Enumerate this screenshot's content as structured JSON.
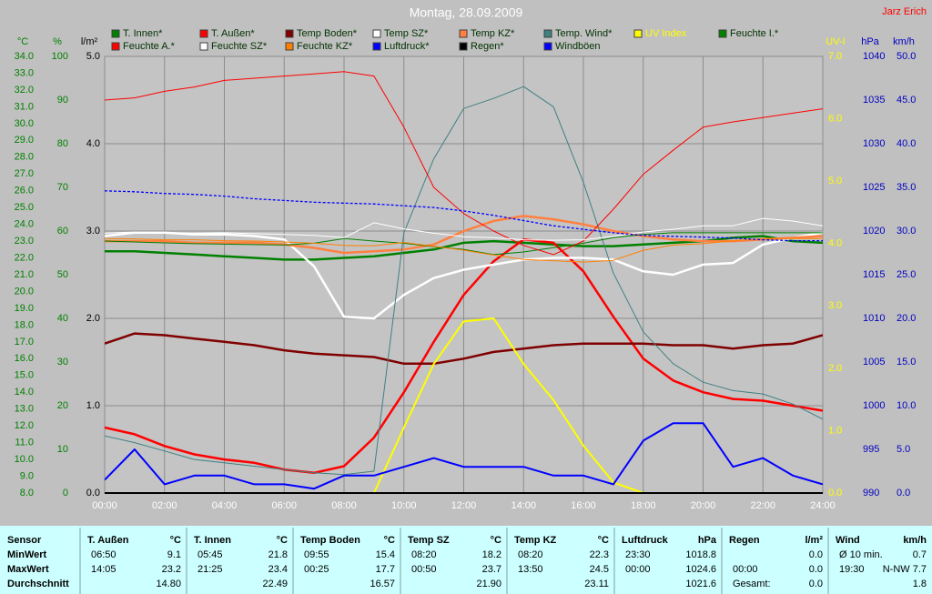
{
  "chart_data": {
    "type": "line",
    "title": "Montag, 28.09.2009",
    "author": "Jarz Erich",
    "x": [
      0,
      1,
      2,
      3,
      4,
      5,
      6,
      7,
      8,
      9,
      10,
      11,
      12,
      13,
      14,
      15,
      16,
      17,
      18,
      19,
      20,
      21,
      22,
      23,
      24
    ],
    "xlim": [
      0,
      24
    ],
    "xticks": [
      {
        "value": 0,
        "label": "00:00"
      },
      {
        "value": 2,
        "label": "02:00"
      },
      {
        "value": 4,
        "label": "04:00"
      },
      {
        "value": 6,
        "label": "06:00"
      },
      {
        "value": 8,
        "label": "08:00"
      },
      {
        "value": 10,
        "label": "10:00"
      },
      {
        "value": 12,
        "label": "12:00"
      },
      {
        "value": 14,
        "label": "14:00"
      },
      {
        "value": 16,
        "label": "16:00"
      },
      {
        "value": 18,
        "label": "18:00"
      },
      {
        "value": 20,
        "label": "20:00"
      },
      {
        "value": 22,
        "label": "22:00"
      },
      {
        "value": 24,
        "label": "24:00"
      }
    ],
    "grid": true,
    "grid_axis": 2,
    "axes": [
      {
        "label": "°C",
        "side": "left",
        "color": "#008000",
        "lim": [
          8,
          34
        ],
        "ticks": [
          {
            "value": 8,
            "label": "8.0"
          },
          {
            "value": 9,
            "label": "9.0"
          },
          {
            "value": 10,
            "label": "10.0"
          },
          {
            "value": 11,
            "label": "11.0"
          },
          {
            "value": 12,
            "label": "12.0"
          },
          {
            "value": 13,
            "label": "13.0"
          },
          {
            "value": 14,
            "label": "14.0"
          },
          {
            "value": 15,
            "label": "15.0"
          },
          {
            "value": 16,
            "label": "16.0"
          },
          {
            "value": 17,
            "label": "17.0"
          },
          {
            "value": 18,
            "label": "18.0"
          },
          {
            "value": 19,
            "label": "19.0"
          },
          {
            "value": 20,
            "label": "20.0"
          },
          {
            "value": 21,
            "label": "21.0"
          },
          {
            "value": 22,
            "label": "22.0"
          },
          {
            "value": 23,
            "label": "23.0"
          },
          {
            "value": 24,
            "label": "24.0"
          },
          {
            "value": 25,
            "label": "25.0"
          },
          {
            "value": 26,
            "label": "26.0"
          },
          {
            "value": 27,
            "label": "27.0"
          },
          {
            "value": 28,
            "label": "28.0"
          },
          {
            "value": 29,
            "label": "29.0"
          },
          {
            "value": 30,
            "label": "30.0"
          },
          {
            "value": 31,
            "label": "31.0"
          },
          {
            "value": 32,
            "label": "32.0"
          },
          {
            "value": 33,
            "label": "33.0"
          },
          {
            "value": 34,
            "label": "34.0"
          }
        ]
      },
      {
        "label": "%",
        "side": "left",
        "color": "#008000",
        "lim": [
          0,
          100
        ],
        "ticks": [
          0,
          10,
          20,
          30,
          40,
          50,
          60,
          70,
          80,
          90,
          100
        ]
      },
      {
        "label": "l/m²",
        "side": "left",
        "color": "#000000",
        "lim": [
          0,
          5
        ],
        "ticks": [
          {
            "value": 0,
            "label": "0.0"
          },
          {
            "value": 1,
            "label": "1.0"
          },
          {
            "value": 2,
            "label": "2.0"
          },
          {
            "value": 3,
            "label": "3.0"
          },
          {
            "value": 4,
            "label": "4.0"
          },
          {
            "value": 5,
            "label": "5.0"
          }
        ]
      },
      {
        "label": "UV-I",
        "side": "right",
        "color": "#ffff00",
        "lim": [
          0,
          7
        ],
        "ticks": [
          {
            "value": 0,
            "label": "0.0"
          },
          {
            "value": 1,
            "label": "1.0"
          },
          {
            "value": 2,
            "label": "2.0"
          },
          {
            "value": 3,
            "label": "3.0"
          },
          {
            "value": 4,
            "label": "4.0"
          },
          {
            "value": 5,
            "label": "5.0"
          },
          {
            "value": 6,
            "label": "6.0"
          },
          {
            "value": 7,
            "label": "7.0"
          }
        ]
      },
      {
        "label": "hPa",
        "side": "right",
        "color": "#0000c0",
        "lim": [
          990,
          1040
        ],
        "ticks": [
          990,
          995,
          1000,
          1005,
          1010,
          1015,
          1020,
          1025,
          1030,
          1035,
          1040
        ]
      },
      {
        "label": "km/h",
        "side": "right",
        "color": "#0000c0",
        "lim": [
          0,
          50
        ],
        "ticks": [
          {
            "value": 0,
            "label": "0.0"
          },
          {
            "value": 5,
            "label": "5.0"
          },
          {
            "value": 10,
            "label": "10.0"
          },
          {
            "value": 15,
            "label": "15.0"
          },
          {
            "value": 20,
            "label": "20.0"
          },
          {
            "value": 25,
            "label": "25.0"
          },
          {
            "value": 30,
            "label": "30.0"
          },
          {
            "value": 35,
            "label": "35.0"
          },
          {
            "value": 40,
            "label": "40.0"
          },
          {
            "value": 45,
            "label": "45.0"
          },
          {
            "value": 50,
            "label": "50.0"
          }
        ]
      }
    ],
    "series": [
      {
        "name": "T. Innen*",
        "color": "#008000",
        "axis": 0,
        "line": "thick",
        "values": [
          22.4,
          22.4,
          22.3,
          22.2,
          22.1,
          22.0,
          21.9,
          21.9,
          22.0,
          22.1,
          22.3,
          22.5,
          22.9,
          23.0,
          22.9,
          22.8,
          22.7,
          22.7,
          22.8,
          22.9,
          23.0,
          23.2,
          23.3,
          23.0,
          22.9
        ]
      },
      {
        "name": "T. Außen*",
        "color": "#ff0000",
        "axis": 0,
        "line": "thick",
        "values": [
          11.9,
          11.5,
          10.8,
          10.3,
          10.0,
          9.8,
          9.4,
          9.2,
          9.6,
          11.3,
          14.0,
          17.0,
          19.8,
          21.8,
          23.1,
          22.9,
          21.2,
          18.5,
          16.0,
          14.7,
          14.0,
          13.6,
          13.5,
          13.2,
          12.9
        ]
      },
      {
        "name": "Temp Boden*",
        "color": "#800000",
        "axis": 0,
        "line": "thick",
        "values": [
          16.9,
          17.5,
          17.4,
          17.2,
          17.0,
          16.8,
          16.5,
          16.3,
          16.2,
          16.1,
          15.7,
          15.7,
          16.0,
          16.4,
          16.6,
          16.8,
          16.9,
          16.9,
          16.9,
          16.8,
          16.8,
          16.6,
          16.8,
          16.9,
          17.4
        ]
      },
      {
        "name": "Temp SZ*",
        "color": "#ffffff",
        "axis": 0,
        "line": "thick",
        "values": [
          23.3,
          23.5,
          23.5,
          23.4,
          23.4,
          23.3,
          23.1,
          21.5,
          18.5,
          18.4,
          19.8,
          20.8,
          21.3,
          21.6,
          21.9,
          22.0,
          22.0,
          21.9,
          21.2,
          21.0,
          21.6,
          21.7,
          22.8,
          23.2,
          23.5
        ]
      },
      {
        "name": "Temp KZ*",
        "color": "#ff8040",
        "axis": 0,
        "line": "thick",
        "values": [
          23.0,
          23.0,
          23.0,
          22.9,
          22.9,
          22.9,
          22.8,
          22.6,
          22.3,
          22.4,
          22.5,
          22.8,
          23.6,
          24.2,
          24.5,
          24.3,
          24.0,
          23.6,
          23.3,
          23.1,
          23.0,
          23.0,
          23.1,
          23.2,
          23.3
        ]
      },
      {
        "name": "Temp. Wind*",
        "color": "#408080",
        "axis": 0,
        "line": "thin",
        "values": [
          11.4,
          11.0,
          10.5,
          10.0,
          9.8,
          9.6,
          9.4,
          9.2,
          9.1,
          9.3,
          23.5,
          27.9,
          30.9,
          31.5,
          32.2,
          31.0,
          26.5,
          21.1,
          17.6,
          15.7,
          14.6,
          14.1,
          13.9,
          13.3,
          12.4
        ]
      },
      {
        "name": "UV Index",
        "color": "#ffff00",
        "axis": 3,
        "line": "medium",
        "values": [
          0,
          0,
          0,
          0,
          0,
          0,
          0,
          0,
          0,
          0,
          1.05,
          2.07,
          2.75,
          2.8,
          2.07,
          1.49,
          0.76,
          0.17,
          0,
          0,
          0,
          0,
          0,
          0,
          0
        ]
      },
      {
        "name": "Feuchte I.*",
        "color": "#008000",
        "axis": 1,
        "line": "thin",
        "values": [
          57.7,
          57.5,
          57.3,
          57.1,
          57,
          56.9,
          56.8,
          57.2,
          58.3,
          57.7,
          57.2,
          56.4,
          55.8,
          54.6,
          55.2,
          56.2,
          57.2,
          58.5,
          59.2,
          59.6,
          59.6,
          59.6,
          59.6,
          59.6,
          59.6
        ]
      },
      {
        "name": "Feuchte A.*",
        "color": "#ff0000",
        "axis": 1,
        "line": "thin",
        "values": [
          90,
          90.5,
          92,
          93,
          94.5,
          95,
          95.5,
          96,
          96.5,
          95.5,
          83.8,
          70,
          64,
          60,
          56.7,
          54.6,
          57.7,
          65,
          73,
          78.5,
          83.8,
          85,
          86,
          87,
          88
        ]
      },
      {
        "name": "Feuchte SZ*",
        "color": "#ffffff",
        "axis": 1,
        "line": "thin",
        "values": [
          59.5,
          59.8,
          59.6,
          59.5,
          59.6,
          59.4,
          59.2,
          59,
          58.5,
          61.9,
          60.5,
          59.5,
          58.7,
          58.5,
          58,
          57.9,
          58,
          58.8,
          59.8,
          60.4,
          61.2,
          61.2,
          62.9,
          62.3,
          61.2
        ]
      },
      {
        "name": "Feuchte KZ*",
        "color": "#ff8000",
        "axis": 1,
        "line": "thin",
        "values": [
          58.3,
          58.2,
          58,
          58,
          57.8,
          57.7,
          57.5,
          57.2,
          56.7,
          56.6,
          57.4,
          56.5,
          55.6,
          54.5,
          53.5,
          53.2,
          52.9,
          53.3,
          55.6,
          56.8,
          57.1,
          57.8,
          58.3,
          58.3,
          58.3
        ]
      },
      {
        "name": "Luftdruck*",
        "color": "#0000ff",
        "axis": 4,
        "line": "dashed",
        "values": [
          1024.6,
          1024.5,
          1024.3,
          1024.2,
          1024.0,
          1023.7,
          1023.5,
          1023.3,
          1023.2,
          1023.1,
          1022.9,
          1022.7,
          1022.3,
          1021.8,
          1021.2,
          1020.6,
          1020.2,
          1019.8,
          1019.5,
          1019.4,
          1019.3,
          1019.2,
          1019.0,
          1018.9,
          1018.9
        ]
      },
      {
        "name": "Regen*",
        "color": "#000000",
        "axis": 2,
        "line": "medium",
        "values": [
          0,
          0,
          0,
          0,
          0,
          0,
          0,
          0,
          0,
          0,
          0,
          0,
          0,
          0,
          0,
          0,
          0,
          0,
          0,
          0,
          0,
          0,
          0,
          0,
          0
        ]
      },
      {
        "name": "Windböen",
        "color": "#0000ff",
        "axis": 5,
        "line": "medium",
        "values": [
          1.5,
          5,
          1,
          2,
          2,
          1,
          1,
          0.5,
          2,
          2,
          3,
          4,
          3,
          3,
          3,
          2,
          2,
          1,
          6,
          8,
          8,
          3,
          4,
          2,
          1
        ]
      }
    ]
  },
  "table": {
    "columns": [
      {
        "title": "Sensor",
        "rows": [
          "MinWert",
          "MaxWert",
          "Durchschnitt"
        ]
      },
      {
        "title": "T. Außen",
        "unit": "°C",
        "rows": [
          [
            "06:50",
            "9.1"
          ],
          [
            "14:05",
            "23.2"
          ],
          [
            null,
            "14.80"
          ]
        ]
      },
      {
        "title": "T. Innen",
        "unit": "°C",
        "rows": [
          [
            "05:45",
            "21.8"
          ],
          [
            "21:25",
            "23.4"
          ],
          [
            null,
            "22.49"
          ]
        ]
      },
      {
        "title": "Temp Boden",
        "unit": "°C",
        "rows": [
          [
            "09:55",
            "15.4"
          ],
          [
            "00:25",
            "17.7"
          ],
          [
            null,
            "16.57"
          ]
        ]
      },
      {
        "title": "Temp SZ",
        "unit": "°C",
        "rows": [
          [
            "08:20",
            "18.2"
          ],
          [
            "00:50",
            "23.7"
          ],
          [
            null,
            "21.90"
          ]
        ]
      },
      {
        "title": "Temp KZ",
        "unit": "°C",
        "rows": [
          [
            "08:20",
            "22.3"
          ],
          [
            "13:50",
            "24.5"
          ],
          [
            null,
            "23.11"
          ]
        ]
      },
      {
        "title": "Luftdruck",
        "unit": "hPa",
        "rows": [
          [
            "23:30",
            "1018.8"
          ],
          [
            "00:00",
            "1024.6"
          ],
          [
            null,
            "1021.6"
          ]
        ]
      },
      {
        "title": "Regen",
        "unit": "l/m²",
        "rows": [
          [
            null,
            "0.0"
          ],
          [
            "00:00",
            "0.0"
          ],
          [
            "Gesamt:",
            "0.0"
          ]
        ]
      },
      {
        "title": "Wind",
        "unit": "km/h",
        "rows": [
          [
            "Ø 10 min.",
            "0.7"
          ],
          [
            "19:30",
            "N-NW 7.7"
          ],
          [
            null,
            "1.8"
          ]
        ]
      }
    ]
  }
}
